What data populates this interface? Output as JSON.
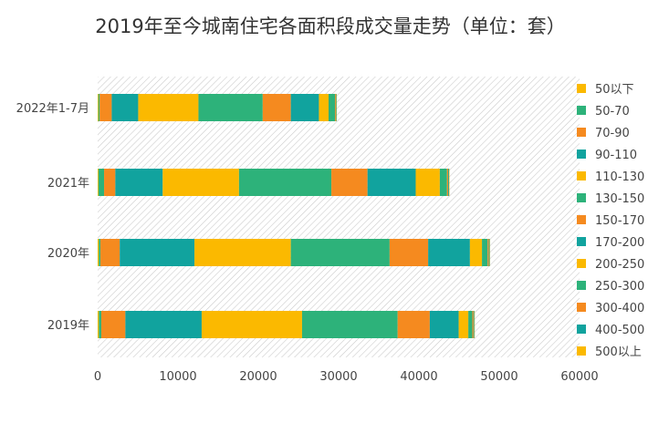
{
  "chart_data": {
    "type": "bar",
    "orientation": "horizontal",
    "stacked": true,
    "title": "2019年至今城南住宅各面积段成交量走势（单位：套）",
    "categories": [
      "2022年1-7月",
      "2021年",
      "2020年",
      "2019年"
    ],
    "xlim": [
      0,
      60000
    ],
    "x_ticks": [
      "0",
      "10000",
      "20000",
      "30000",
      "40000",
      "50000",
      "60000"
    ],
    "grid": false,
    "plot_background": "diagonal-hatch",
    "legend_position": "right",
    "series": [
      {
        "name": "50以下",
        "color": "#FBB900",
        "values": [
          100,
          100,
          150,
          150
        ]
      },
      {
        "name": "50-70",
        "color": "#2DB27A",
        "values": [
          150,
          700,
          200,
          300
        ]
      },
      {
        "name": "70-90",
        "color": "#F58A1F",
        "values": [
          1500,
          1400,
          2400,
          3000
        ]
      },
      {
        "name": "90-110",
        "color": "#11A39E",
        "values": [
          3300,
          5900,
          9300,
          9500
        ]
      },
      {
        "name": "110-130",
        "color": "#FBB900",
        "values": [
          7500,
          9500,
          12000,
          12500
        ]
      },
      {
        "name": "130-150",
        "color": "#2DB27A",
        "values": [
          8000,
          11500,
          12300,
          11900
        ]
      },
      {
        "name": "150-170",
        "color": "#F58A1F",
        "values": [
          3500,
          4500,
          4800,
          4000
        ]
      },
      {
        "name": "170-200",
        "color": "#11A39E",
        "values": [
          3500,
          6000,
          5200,
          3600
        ]
      },
      {
        "name": "200-250",
        "color": "#FBB900",
        "values": [
          1200,
          3000,
          1500,
          1200
        ]
      },
      {
        "name": "250-300",
        "color": "#2DB27A",
        "values": [
          800,
          900,
          700,
          500
        ]
      },
      {
        "name": "300-400",
        "color": "#F58A1F",
        "values": [
          100,
          150,
          150,
          150
        ]
      },
      {
        "name": "400-500",
        "color": "#11A39E",
        "values": [
          80,
          100,
          100,
          100
        ]
      },
      {
        "name": "500以上",
        "color": "#FBB900",
        "values": [
          50,
          50,
          50,
          50
        ]
      }
    ]
  }
}
